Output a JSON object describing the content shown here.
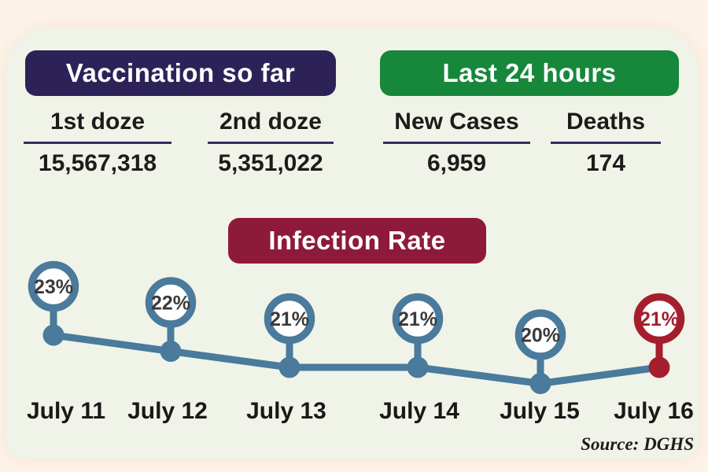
{
  "panels": {
    "vaccination": {
      "title": "Vaccination so far",
      "stats": [
        {
          "label": "1st doze",
          "value": "15,567,318"
        },
        {
          "label": "2nd doze",
          "value": "5,351,022"
        }
      ]
    },
    "last24": {
      "title": "Last 24 hours",
      "stats": [
        {
          "label": "New Cases",
          "value": "6,959"
        },
        {
          "label": "Deaths",
          "value": "174"
        }
      ]
    }
  },
  "chart_data": {
    "type": "line",
    "title": "Infection Rate",
    "categories": [
      "July 11",
      "July 12",
      "July 13",
      "July 14",
      "July 15",
      "July 16"
    ],
    "values": [
      23,
      22,
      21,
      21,
      20,
      21
    ],
    "unit": "%",
    "highlight_index": 5,
    "ylim": [
      20,
      23
    ],
    "legend": "none",
    "grid": false,
    "colors": {
      "line": "#4a7a9c",
      "highlight": "#a51e2d",
      "marker_fill": "#ffffff",
      "value_text": "#3a3a3a"
    }
  },
  "source": "Source: DGHS",
  "colors": {
    "background": "#fdf2e6",
    "card": "#f0f3e7",
    "vaccination_header": "#2d2258",
    "last24_header": "#17873c",
    "infection_header": "#8e1a3b",
    "underline": "#372a63"
  }
}
